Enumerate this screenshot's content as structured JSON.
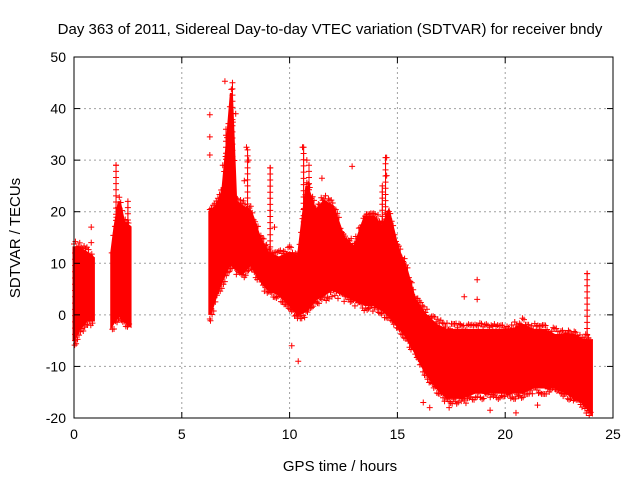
{
  "chart_data": {
    "type": "scatter",
    "title": "Day 363 of 2011, Sidereal Day-to-day VTEC variation (SDTVAR) for receiver bndy",
    "xlabel": "GPS time / hours",
    "ylabel": "SDTVAR / TECUs",
    "xlim": [
      0,
      25
    ],
    "ylim": [
      -20,
      50
    ],
    "xticks": [
      0,
      5,
      10,
      15,
      20,
      25
    ],
    "yticks": [
      -20,
      -10,
      0,
      10,
      20,
      30,
      40,
      50
    ],
    "grid": true,
    "marker": "+",
    "color": "#ff0000",
    "series": [
      {
        "name": "SDTVAR",
        "envelope": {
          "comment": "Band of densely packed points: [hour, low, high]",
          "segments": [
            [
              [
                0.0,
                -5,
                13
              ],
              [
                0.2,
                -3,
                13
              ],
              [
                0.4,
                -2,
                12.5
              ],
              [
                0.6,
                -1,
                12
              ],
              [
                0.9,
                -1,
                11
              ]
            ],
            [
              [
                1.75,
                -2,
                12
              ],
              [
                1.9,
                -1,
                17
              ],
              [
                2.1,
                0,
                22
              ],
              [
                2.3,
                -1,
                18
              ],
              [
                2.6,
                -2,
                17
              ]
            ],
            [
              [
                6.3,
                0,
                20
              ],
              [
                6.6,
                4,
                21
              ],
              [
                6.9,
                7,
                24
              ],
              [
                7.1,
                9,
                33
              ],
              [
                7.3,
                10,
                43
              ],
              [
                7.5,
                9,
                22
              ],
              [
                7.8,
                8,
                21
              ],
              [
                8.2,
                10,
                20
              ],
              [
                8.6,
                7,
                15
              ],
              [
                9.0,
                5,
                12
              ],
              [
                9.5,
                4,
                11
              ],
              [
                10.0,
                2,
                12
              ],
              [
                10.4,
                0,
                11
              ],
              [
                10.8,
                1,
                25
              ],
              [
                11.2,
                3,
                20
              ],
              [
                11.6,
                4,
                22
              ],
              [
                12.0,
                5,
                21
              ],
              [
                12.5,
                4,
                15
              ],
              [
                13.0,
                3,
                13
              ],
              [
                13.5,
                2,
                19
              ],
              [
                13.9,
                2,
                19
              ],
              [
                14.3,
                1,
                17
              ],
              [
                14.6,
                0,
                20
              ],
              [
                15.0,
                -2,
                13
              ],
              [
                15.4,
                -4,
                9
              ],
              [
                15.8,
                -7,
                3
              ],
              [
                16.3,
                -11,
                0
              ],
              [
                16.8,
                -14,
                -2
              ],
              [
                17.3,
                -16,
                -3
              ],
              [
                18.0,
                -16,
                -3
              ],
              [
                18.6,
                -15,
                -3
              ],
              [
                19.2,
                -15,
                -3
              ],
              [
                19.8,
                -15,
                -3
              ],
              [
                20.3,
                -15,
                -3
              ],
              [
                20.8,
                -15,
                -2
              ],
              [
                21.3,
                -14,
                -3
              ],
              [
                21.8,
                -14,
                -3
              ],
              [
                22.3,
                -14,
                -4
              ],
              [
                22.8,
                -15,
                -4
              ],
              [
                23.2,
                -16,
                -4
              ],
              [
                23.6,
                -17,
                -5
              ],
              [
                24.0,
                -19,
                -5
              ]
            ]
          ]
        },
        "outliers": [
          [
            7.0,
            45.3
          ],
          [
            6.3,
            38.8
          ],
          [
            6.3,
            34.5
          ],
          [
            6.3,
            31
          ],
          [
            6.9,
            29
          ],
          [
            7.5,
            39
          ],
          [
            8.0,
            32.5
          ],
          [
            8.1,
            30
          ],
          [
            7.9,
            26
          ],
          [
            9.1,
            28.5
          ],
          [
            10.6,
            32.5
          ],
          [
            10.8,
            30
          ],
          [
            11.5,
            26.5
          ],
          [
            12.9,
            28.8
          ],
          [
            14.5,
            30.5
          ],
          [
            14.5,
            27
          ],
          [
            0.8,
            17
          ],
          [
            0.8,
            14
          ],
          [
            1.95,
            29
          ],
          [
            6.3,
            -0.8
          ],
          [
            10.1,
            -6
          ],
          [
            10.4,
            -9
          ],
          [
            18.7,
            6.8
          ],
          [
            23.8,
            8
          ],
          [
            18.1,
            3.5
          ],
          [
            18.7,
            3
          ],
          [
            17.4,
            -18
          ],
          [
            16.5,
            -18
          ],
          [
            20.5,
            -19
          ],
          [
            21.5,
            -17.5
          ],
          [
            11.7,
            15
          ],
          [
            12.5,
            13.5
          ],
          [
            9.3,
            17
          ],
          [
            16.2,
            -17
          ],
          [
            19.3,
            -18.5
          ]
        ]
      }
    ]
  }
}
